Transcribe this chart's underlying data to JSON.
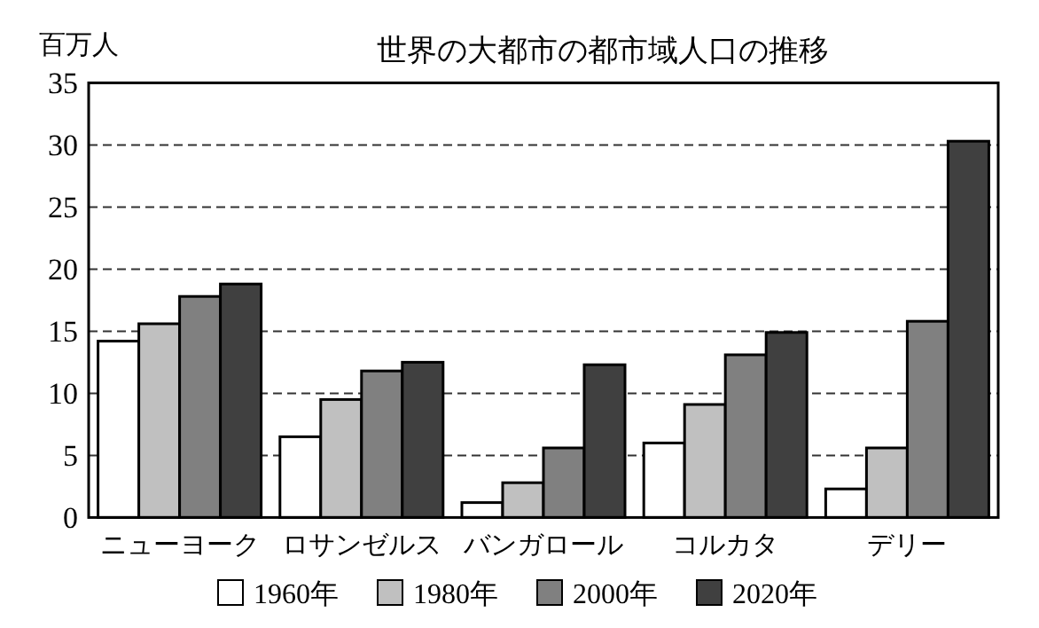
{
  "chart_data": {
    "type": "bar",
    "title": "世界の大都市の都市域人口の推移",
    "ylabel": "百万人",
    "categories": [
      "ニューヨーク",
      "ロサンゼルス",
      "バンガロール",
      "コルカタ",
      "デリー"
    ],
    "series": [
      {
        "name": "1960年",
        "color": "#ffffff",
        "values": [
          14.2,
          6.5,
          1.2,
          6.0,
          2.3
        ]
      },
      {
        "name": "1980年",
        "color": "#c0c0c0",
        "values": [
          15.6,
          9.5,
          2.8,
          9.1,
          5.6
        ]
      },
      {
        "name": "2000年",
        "color": "#808080",
        "values": [
          17.8,
          11.8,
          5.6,
          13.1,
          15.8
        ]
      },
      {
        "name": "2020年",
        "color": "#404040",
        "values": [
          18.8,
          12.5,
          12.3,
          14.9,
          30.3
        ]
      }
    ],
    "ylim": [
      0,
      35
    ],
    "yticks": [
      0,
      5,
      10,
      15,
      20,
      25,
      30,
      35
    ],
    "grid": "y",
    "line_style": "dashed",
    "legend": "bottom"
  }
}
